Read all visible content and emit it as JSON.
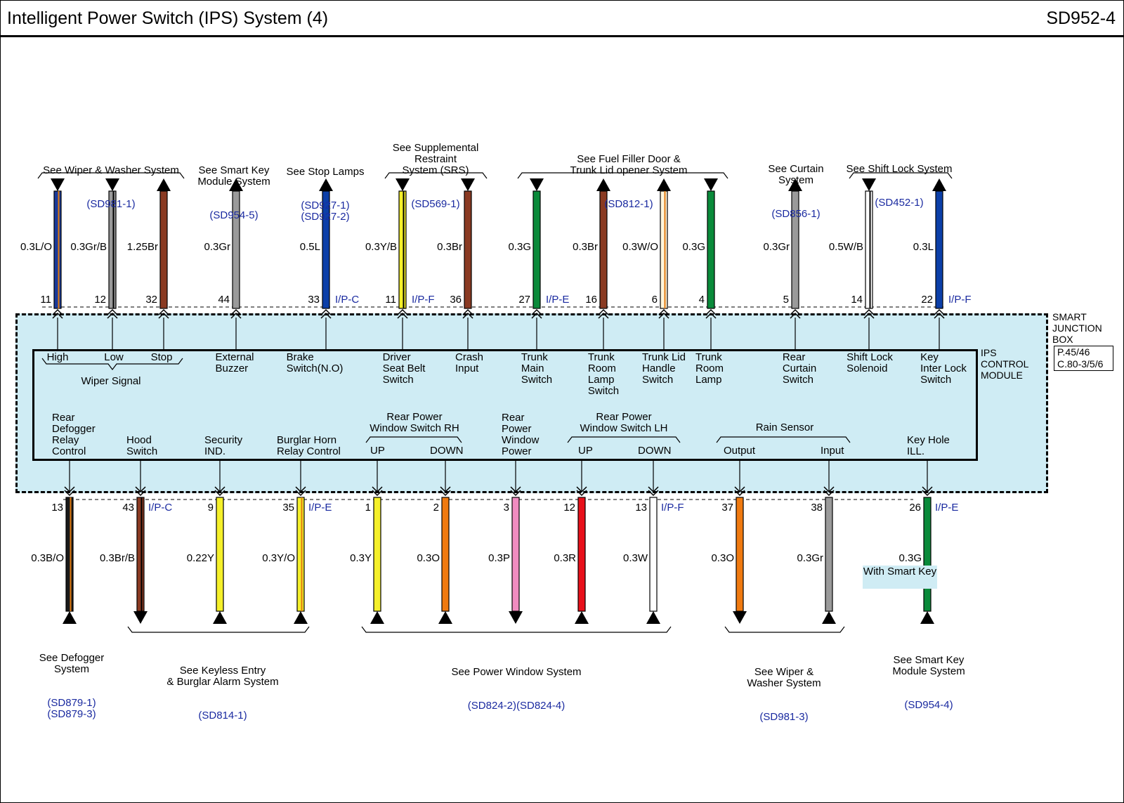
{
  "header": {
    "title": "Intelligent Power Switch (IPS) System (4)",
    "code": "SD952-4"
  },
  "junction_box": {
    "label": "SMART\nJUNCTION\nBOX",
    "refs": "P.45/46\nC.80-3/5/6"
  },
  "module": {
    "label": "IPS\nCONTROL\nMODULE"
  },
  "top_groups": [
    {
      "text": "See Wiper & Washer System",
      "refs": "(SD981-1)"
    },
    {
      "text": "See Smart Key\nModule System",
      "refs": "(SD954-5)"
    },
    {
      "text": "See Stop Lamps",
      "refs": "(SD927-1)\n(SD927-2)"
    },
    {
      "text": "See Supplemental\nRestraint\nSystem (SRS)",
      "refs": "(SD569-1)"
    },
    {
      "text": "See Fuel Filler Door &\nTrunk Lid opener System",
      "refs": "(SD812-1)"
    },
    {
      "text": "See Curtain\nSystem",
      "refs": "(SD856-1)"
    },
    {
      "text": "See Shift Lock System",
      "refs": "(SD452-1)"
    }
  ],
  "top_wires": [
    {
      "pin": "11",
      "wire": "0.3L/O",
      "connector": "",
      "label": "High",
      "color": "#1a3a9a",
      "stripe": "#e07a10",
      "arrow": "down"
    },
    {
      "pin": "12",
      "wire": "0.3Gr/B",
      "connector": "",
      "label": "Low",
      "color": "#9a9a9a",
      "stripe": "#000000",
      "arrow": "down"
    },
    {
      "pin": "32",
      "wire": "1.25Br",
      "connector": "",
      "label": "Stop",
      "color": "#8a3a22",
      "stripe": "",
      "arrow": "up"
    },
    {
      "pin": "44",
      "wire": "0.3Gr",
      "connector": "",
      "label": "External\nBuzzer",
      "color": "#9a9a9a",
      "stripe": "",
      "arrow": "up"
    },
    {
      "pin": "33",
      "wire": "0.5L",
      "connector": "I/P-C",
      "label": "Brake\nSwitch(N.O)",
      "color": "#0c3fa8",
      "stripe": "",
      "arrow": "up"
    },
    {
      "pin": "11",
      "wire": "0.3Y/B",
      "connector": "I/P-F",
      "label": "Driver\nSeat Belt\nSwitch",
      "color": "#f5f02a",
      "stripe": "#000000",
      "arrow": "down"
    },
    {
      "pin": "36",
      "wire": "0.3Br",
      "connector": "",
      "label": "Crash\nInput",
      "color": "#8a3a22",
      "stripe": "",
      "arrow": "down"
    },
    {
      "pin": "27",
      "wire": "0.3G",
      "connector": "I/P-E",
      "label": "Trunk\nMain\nSwitch",
      "color": "#0a8a3a",
      "stripe": "",
      "arrow": "down"
    },
    {
      "pin": "16",
      "wire": "0.3Br",
      "connector": "",
      "label": "Trunk\nRoom\nLamp\nSwitch",
      "color": "#8a3a22",
      "stripe": "",
      "arrow": "up"
    },
    {
      "pin": "6",
      "wire": "0.3W/O",
      "connector": "",
      "label": "Trunk Lid\nHandle\nSwitch",
      "color": "#fff6dc",
      "stripe": "#e07a10",
      "arrow": "up"
    },
    {
      "pin": "4",
      "wire": "0.3G",
      "connector": "",
      "label": "Trunk\nRoom\nLamp",
      "color": "#0a8a3a",
      "stripe": "",
      "arrow": "down"
    },
    {
      "pin": "5",
      "wire": "0.3Gr",
      "connector": "",
      "label": "Rear\nCurtain\nSwitch",
      "color": "#9a9a9a",
      "stripe": "",
      "arrow": "up"
    },
    {
      "pin": "14",
      "wire": "0.5W/B",
      "connector": "",
      "label": "Shift Lock\nSolenoid",
      "color": "#ffffff",
      "stripe": "#000000",
      "arrow": "down"
    },
    {
      "pin": "22",
      "wire": "0.3L",
      "connector": "I/P-F",
      "label": "Key\nInter Lock\nSwitch",
      "color": "#0c3fa8",
      "stripe": "",
      "arrow": "up"
    }
  ],
  "wiper_signal": "Wiper Signal",
  "bottom_groups": [
    {
      "text": "Rear Power\nWindow Switch RH"
    },
    {
      "text": "Rear Power\nWindow Switch LH"
    },
    {
      "text": "Rain Sensor"
    }
  ],
  "bottom_wires": [
    {
      "pin": "13",
      "wire": "0.3B/O",
      "connector": "",
      "label": "Rear\nDefogger\nRelay\nControl",
      "color": "#1a1a1a",
      "stripe": "#e07a10",
      "arrow": "up"
    },
    {
      "pin": "43",
      "wire": "0.3Br/B",
      "connector": "I/P-C",
      "label": "Hood\nSwitch",
      "color": "#8a3a22",
      "stripe": "#000000",
      "arrow": "down"
    },
    {
      "pin": "9",
      "wire": "0.22Y",
      "connector": "",
      "label": "Security\nIND.",
      "color": "#f5f02a",
      "stripe": "",
      "arrow": "up"
    },
    {
      "pin": "35",
      "wire": "0.3Y/O",
      "connector": "I/P-E",
      "label": "Burglar Horn\nRelay Control",
      "color": "#f5f02a",
      "stripe": "#e07a10",
      "arrow": "up"
    },
    {
      "pin": "1",
      "wire": "0.3Y",
      "connector": "",
      "label": "UP",
      "color": "#f5f02a",
      "stripe": "",
      "arrow": "up"
    },
    {
      "pin": "2",
      "wire": "0.3O",
      "connector": "",
      "label": "DOWN",
      "color": "#f07a10",
      "stripe": "",
      "arrow": "up"
    },
    {
      "pin": "3",
      "wire": "0.3P",
      "connector": "",
      "label": "Rear\nPower\nWindow\nPower",
      "color": "#f08cc0",
      "stripe": "",
      "arrow": "down"
    },
    {
      "pin": "12",
      "wire": "0.3R",
      "connector": "",
      "label": "UP",
      "color": "#e8101a",
      "stripe": "",
      "arrow": "up"
    },
    {
      "pin": "13",
      "wire": "0.3W",
      "connector": "I/P-F",
      "label": "DOWN",
      "color": "#ffffff",
      "stripe": "",
      "arrow": "up"
    },
    {
      "pin": "37",
      "wire": "0.3O",
      "connector": "",
      "label": "Output",
      "color": "#f07a10",
      "stripe": "",
      "arrow": "down"
    },
    {
      "pin": "38",
      "wire": "0.3Gr",
      "connector": "",
      "label": "Input",
      "color": "#9a9a9a",
      "stripe": "",
      "arrow": "up"
    },
    {
      "pin": "26",
      "wire": "0.3G",
      "connector": "I/P-E",
      "label": "Key Hole\nILL.",
      "color": "#0a8a3a",
      "stripe": "",
      "arrow": "up"
    }
  ],
  "smart_key_note": "With\nSmart Key",
  "bottom_refs": [
    {
      "text": "See Defogger\nSystem",
      "refs": "(SD879-1)\n(SD879-3)"
    },
    {
      "text": "See Keyless Entry\n& Burglar Alarm System",
      "refs": "(SD814-1)"
    },
    {
      "text": "See Power Window System",
      "refs": "(SD824-2)(SD824-4)"
    },
    {
      "text": "See Wiper &\nWasher System",
      "refs": "(SD981-3)"
    },
    {
      "text": "See Smart Key\nModule System",
      "refs": "(SD954-4)"
    }
  ]
}
